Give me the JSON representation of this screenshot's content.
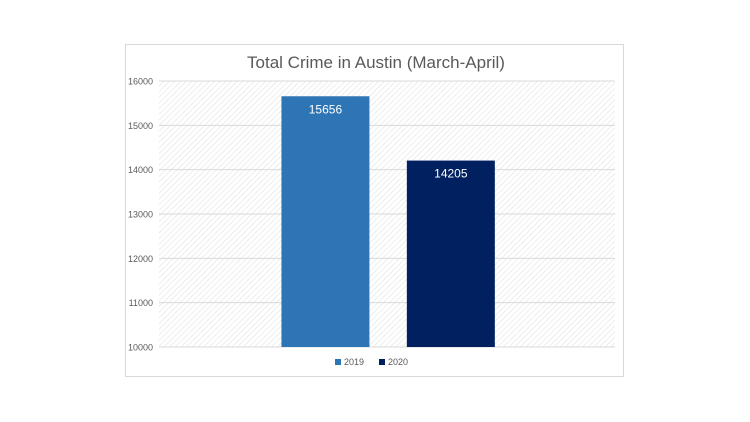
{
  "chart_data": {
    "type": "bar",
    "title": "Total Crime in Austin (March-April)",
    "xlabel": "",
    "ylabel": "",
    "ylim": [
      10000,
      16000
    ],
    "yticks": [
      10000,
      11000,
      12000,
      13000,
      14000,
      15000,
      16000
    ],
    "grid": true,
    "legend_position": "bottom",
    "categories": [
      "2019",
      "2020"
    ],
    "values": [
      15656,
      14205
    ],
    "colors": [
      "#2e75b6",
      "#002060"
    ],
    "data_labels": [
      "15656",
      "14205"
    ],
    "legend": [
      {
        "label": "2019",
        "color": "#2e75b6"
      },
      {
        "label": "2020",
        "color": "#002060"
      }
    ]
  }
}
